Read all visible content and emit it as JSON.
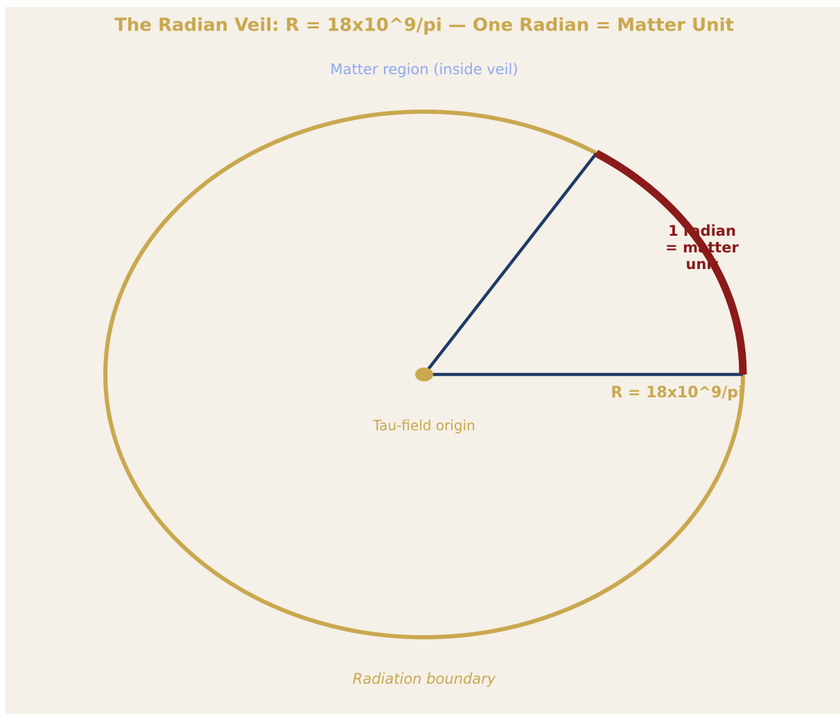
{
  "title": "The Radian Veil: R = 18x10^9/pi — One Radian = Matter Unit",
  "labels": {
    "matter_region": "Matter region (inside veil)",
    "radian_label": [
      "1 radian",
      "= matter",
      "unit"
    ],
    "radius_label": "R = 18x10^9/pi",
    "origin": "Tau-field origin",
    "boundary": "Radiation boundary"
  }
}
